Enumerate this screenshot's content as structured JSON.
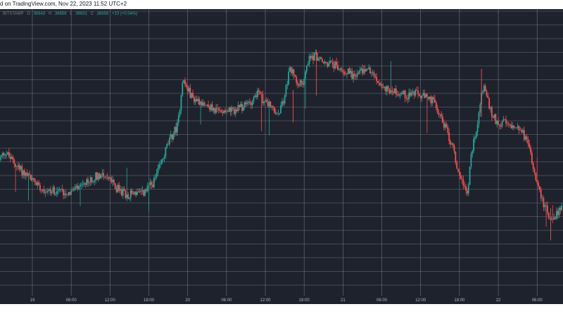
{
  "header": {
    "caption": "d on TradingView.com, Nov 22, 2023 11:52 UTC+2"
  },
  "legend": {
    "symbol": "BITSTAMP",
    "open_label": "O",
    "open": ".36643",
    "high_label": "H",
    "high": ".36656",
    "low_label": "L",
    "low": ".36631",
    "close_label": "C",
    "close": ".36656",
    "change": "+13 (+0.04%)"
  },
  "chart_data": {
    "type": "line",
    "title": "",
    "xlabel": "",
    "ylabel": "",
    "grid": true,
    "x_ticks": [
      "19",
      "06:00",
      "12:00",
      "18:00",
      "20",
      "06:00",
      "12:00",
      "18:00",
      "21",
      "06:00",
      "12:00",
      "18:00",
      "22",
      "06:00"
    ],
    "x_range_hours": [
      -5,
      82
    ],
    "y_range": [
      0,
      100
    ],
    "series": [
      {
        "values": [
          [
            -5,
            48
          ],
          [
            -4,
            51
          ],
          [
            -3,
            48
          ],
          [
            -2,
            45
          ],
          [
            -1,
            43
          ],
          [
            0,
            41
          ],
          [
            1,
            39
          ],
          [
            2,
            37
          ],
          [
            3,
            36
          ],
          [
            4,
            37
          ],
          [
            5,
            36
          ],
          [
            6,
            36
          ],
          [
            7,
            37
          ],
          [
            8,
            38
          ],
          [
            9,
            40
          ],
          [
            10,
            42
          ],
          [
            11,
            43
          ],
          [
            12,
            41
          ],
          [
            13,
            38
          ],
          [
            14,
            36
          ],
          [
            15,
            35
          ],
          [
            16,
            36
          ],
          [
            17,
            35
          ],
          [
            18,
            37
          ],
          [
            19,
            40
          ],
          [
            20,
            46
          ],
          [
            21,
            53
          ],
          [
            22,
            58
          ],
          [
            22.7,
            61
          ],
          [
            23,
            68
          ],
          [
            23.4,
            78
          ],
          [
            24,
            75
          ],
          [
            25,
            71
          ],
          [
            26,
            70
          ],
          [
            27,
            69
          ],
          [
            28,
            67
          ],
          [
            29,
            66
          ],
          [
            30,
            67
          ],
          [
            31,
            66
          ],
          [
            32,
            67
          ],
          [
            33,
            68
          ],
          [
            34,
            70
          ],
          [
            35,
            73
          ],
          [
            36,
            70
          ],
          [
            37,
            68
          ],
          [
            38,
            64
          ],
          [
            39,
            70
          ],
          [
            40,
            82
          ],
          [
            41,
            78
          ],
          [
            42,
            76
          ],
          [
            43,
            86
          ],
          [
            44,
            87
          ],
          [
            45,
            84
          ],
          [
            46,
            84
          ],
          [
            47,
            83
          ],
          [
            48,
            81
          ],
          [
            49,
            81
          ],
          [
            50,
            79
          ],
          [
            51,
            81
          ],
          [
            52,
            82
          ],
          [
            53,
            79
          ],
          [
            54,
            76
          ],
          [
            55,
            74
          ],
          [
            56,
            74
          ],
          [
            57,
            73
          ],
          [
            58,
            72
          ],
          [
            59,
            73
          ],
          [
            60,
            72
          ],
          [
            61,
            71
          ],
          [
            62,
            70
          ],
          [
            63,
            66
          ],
          [
            64,
            60
          ],
          [
            65,
            54
          ],
          [
            66,
            44
          ],
          [
            67,
            38
          ],
          [
            67.5,
            36
          ],
          [
            68,
            50
          ],
          [
            69,
            62
          ],
          [
            69.5,
            71
          ],
          [
            70,
            76
          ],
          [
            71,
            66
          ],
          [
            72,
            62
          ],
          [
            73,
            62
          ],
          [
            74,
            60
          ],
          [
            75,
            61
          ],
          [
            76,
            58
          ],
          [
            77,
            52
          ],
          [
            78,
            42
          ],
          [
            79,
            33
          ],
          [
            80,
            27
          ],
          [
            80.5,
            24
          ],
          [
            81,
            27
          ],
          [
            82,
            31
          ],
          [
            83,
            35
          ],
          [
            84,
            38
          ],
          [
            85,
            41
          ],
          [
            86,
            43
          ],
          [
            87,
            44
          ],
          [
            88,
            45
          ]
        ]
      }
    ]
  },
  "colors": {
    "background": "#1e222d",
    "grid": "#8c8f99",
    "up": "#26a69a",
    "down": "#ef5350"
  }
}
